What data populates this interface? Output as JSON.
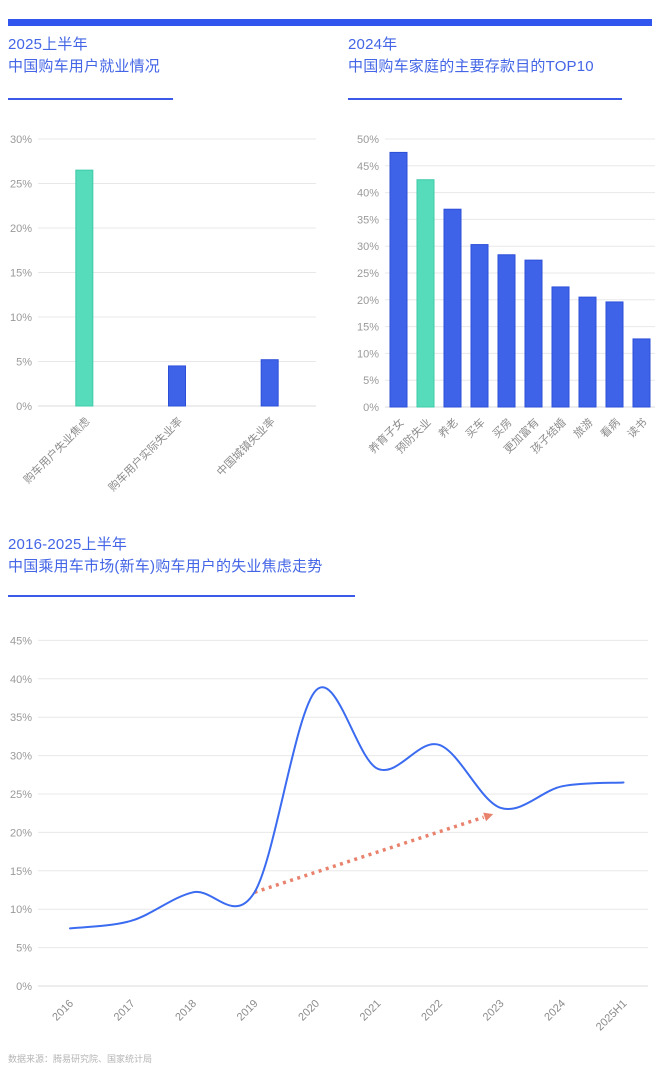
{
  "colors": {
    "topbar_blue": "#3156EE",
    "title_blue": "#4365E6",
    "underline_blue": "#3B5AE8",
    "bar_blue": "#3E63E9",
    "bar_blue_stroke": "#2C4FD8",
    "bar_teal": "#57DCBB",
    "bar_teal_stroke": "#3DCBA9",
    "line_blue": "#3B6BF0",
    "arrow_salmon": "#E8826D",
    "grid_gray": "#E8E8E8",
    "axis_gray": "#DBDBDB",
    "tick_gray": "#9A9A9A",
    "category_gray": "#8C8C8C",
    "footer_gray": "#B5B5B5"
  },
  "chart_data": [
    {
      "id": "employment-bar",
      "type": "bar",
      "title_line1": "2025上半年",
      "title_line2": "中国购车用户就业情况",
      "categories": [
        "购车用户失业焦虑",
        "购车用户实际失业率",
        "中国城镇失业率"
      ],
      "values": [
        26.5,
        4.5,
        5.2
      ],
      "bar_colors": [
        "teal",
        "blue",
        "blue"
      ],
      "ylim": [
        0,
        30
      ],
      "ytick_step": 5,
      "ytick_suffix": "%",
      "grid": true,
      "legend": "none"
    },
    {
      "id": "savings-bar",
      "type": "bar",
      "title_line1": "2024年",
      "title_line2": "中国购车家庭的主要存款目的TOP10",
      "categories": [
        "养育子女",
        "预防失业",
        "养老",
        "买车",
        "买房",
        "更加富有",
        "孩子结婚",
        "旅游",
        "看病",
        "读书"
      ],
      "values": [
        47.5,
        42.4,
        36.9,
        30.3,
        28.4,
        27.4,
        22.4,
        20.5,
        19.6,
        12.7
      ],
      "bar_colors": [
        "blue",
        "teal",
        "blue",
        "blue",
        "blue",
        "blue",
        "blue",
        "blue",
        "blue",
        "blue"
      ],
      "ylim": [
        0,
        50
      ],
      "ytick_step": 5,
      "ytick_suffix": "%",
      "grid": true,
      "legend": "none"
    },
    {
      "id": "anxiety-trend-line",
      "type": "line",
      "title_line1": "2016-2025上半年",
      "title_line2": "中国乘用车市场(新车)购车用户的失业焦虑走势",
      "x": [
        "2016",
        "2017",
        "2018",
        "2019",
        "2020",
        "2021",
        "2022",
        "2023",
        "2024",
        "2025H1"
      ],
      "values": [
        7.5,
        8.5,
        12.2,
        12.2,
        38.5,
        28.3,
        31.4,
        23.2,
        26.0,
        26.5
      ],
      "ylim": [
        0,
        45
      ],
      "ytick_step": 5,
      "ytick_suffix": "%",
      "grid": true,
      "legend": "none",
      "annotations": [
        {
          "type": "dotted-arrow",
          "from": {
            "x_index": 3,
            "value": 12.2
          },
          "to": {
            "x_index": 6.85,
            "value": 22.3
          }
        }
      ]
    }
  ],
  "footer": {
    "source": "数据来源：腾易研究院、国家统计局"
  }
}
